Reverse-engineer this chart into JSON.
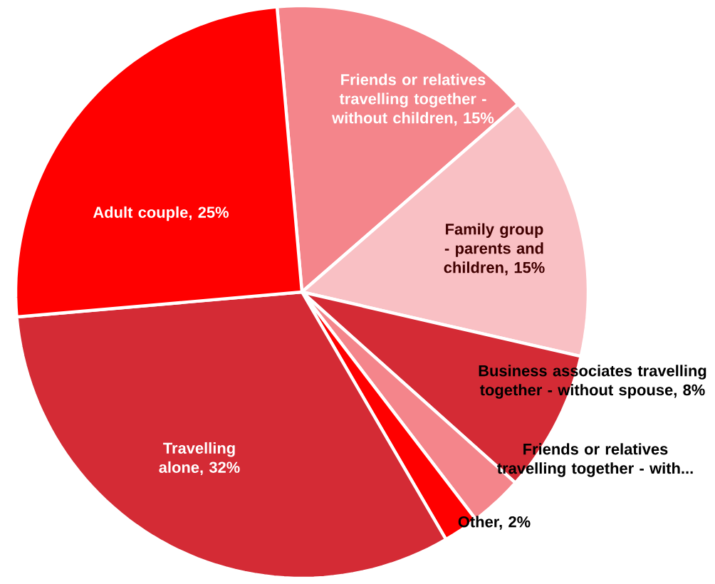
{
  "chart_data": {
    "type": "pie",
    "categories": [
      "Friends or relatives travelling together - without children, 15%",
      "Family group - parents and children, 15%",
      "Business associates travelling together - without spouse, 8%",
      "Friends or relatives travelling together - with...",
      "Other, 2%",
      "Travelling alone, 32%",
      "Adult couple, 25%"
    ],
    "values": [
      15,
      15,
      8,
      3,
      2,
      32,
      25
    ],
    "colors": [
      "#f4858b",
      "#f9c0c4",
      "#d42b35",
      "#f4858b",
      "#ff0000",
      "#d42b35",
      "#ff0000"
    ]
  }
}
